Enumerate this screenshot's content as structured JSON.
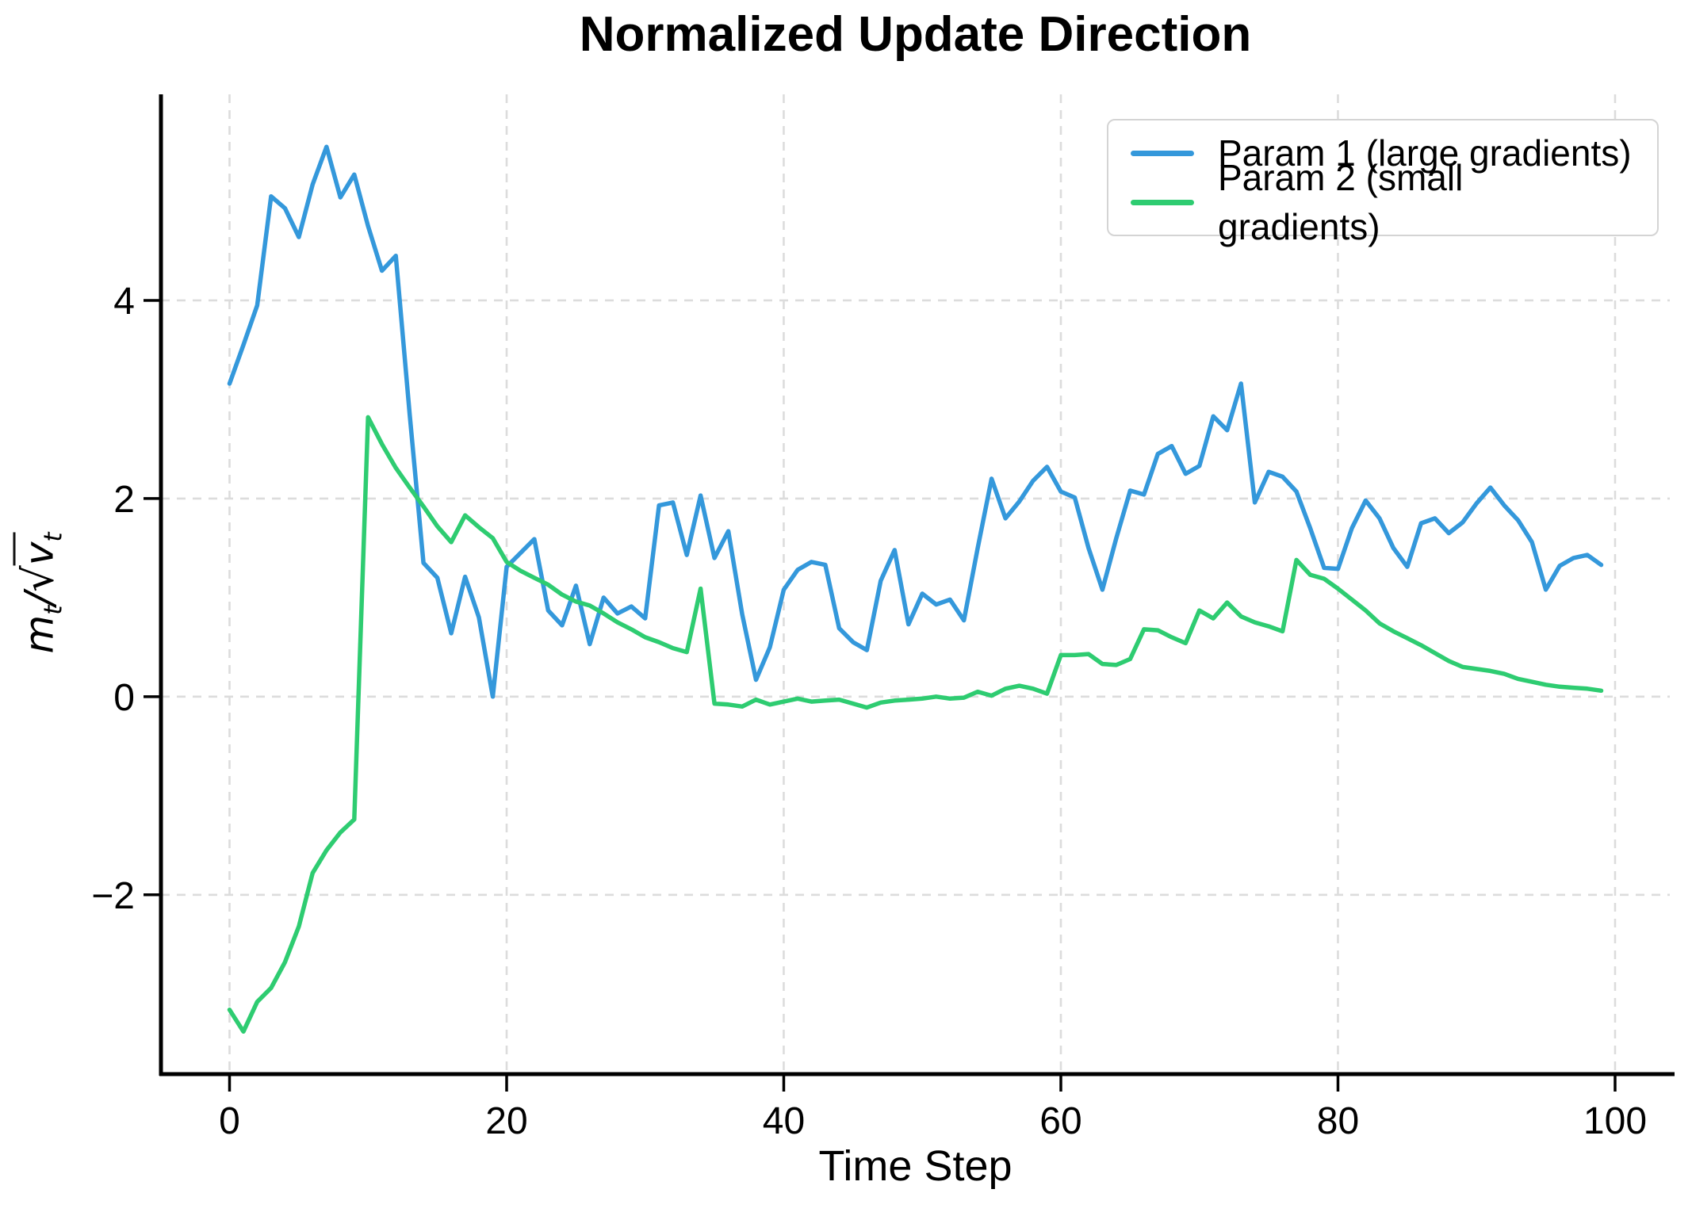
{
  "chart_data": {
    "type": "line",
    "title": "Normalized Update Direction",
    "xlabel": "Time Step",
    "ylabel": "m_t/√v_t",
    "x_range": [
      0,
      99
    ],
    "x_step": 1,
    "xlim": [
      -4.95,
      103.95
    ],
    "ylim": [
      -3.81,
      6.08
    ],
    "xticks": [
      {
        "v": 0,
        "label": "0"
      },
      {
        "v": 20,
        "label": "20"
      },
      {
        "v": 40,
        "label": "40"
      },
      {
        "v": 60,
        "label": "60"
      },
      {
        "v": 80,
        "label": "80"
      },
      {
        "v": 100,
        "label": "100"
      }
    ],
    "yticks": [
      {
        "v": -2,
        "label": "−2"
      },
      {
        "v": 0,
        "label": "0"
      },
      {
        "v": 2,
        "label": "2"
      },
      {
        "v": 4,
        "label": "4"
      }
    ],
    "grid": "dashed",
    "legend_position": "upper right",
    "series": [
      {
        "name": "Param 1 (large gradients)",
        "color": "#3498db",
        "values": [
          3.16,
          3.55,
          3.95,
          5.05,
          4.93,
          4.64,
          5.17,
          5.55,
          5.04,
          5.27,
          4.75,
          4.3,
          4.45,
          2.85,
          1.35,
          1.2,
          0.64,
          1.21,
          0.8,
          0.0,
          1.31,
          1.45,
          1.59,
          0.87,
          0.72,
          1.12,
          0.53,
          1.0,
          0.84,
          0.91,
          0.79,
          1.93,
          1.96,
          1.43,
          2.03,
          1.4,
          1.67,
          0.83,
          0.17,
          0.5,
          1.08,
          1.28,
          1.36,
          1.33,
          0.69,
          0.55,
          0.47,
          1.17,
          1.48,
          0.73,
          1.04,
          0.93,
          0.98,
          0.77,
          1.5,
          2.2,
          1.8,
          1.97,
          2.18,
          2.32,
          2.07,
          2.01,
          1.5,
          1.08,
          1.6,
          2.08,
          2.04,
          2.45,
          2.53,
          2.25,
          2.33,
          2.83,
          2.69,
          3.16,
          1.96,
          2.27,
          2.22,
          2.07,
          1.7,
          1.3,
          1.29,
          1.7,
          1.98,
          1.8,
          1.5,
          1.31,
          1.75,
          1.8,
          1.65,
          1.76,
          1.95,
          2.11,
          1.93,
          1.78,
          1.56,
          1.08,
          1.32,
          1.4,
          1.43,
          1.33
        ]
      },
      {
        "name": "Param 2 (small gradients)",
        "color": "#2ecc71",
        "values": [
          -3.16,
          -3.38,
          -3.08,
          -2.94,
          -2.68,
          -2.32,
          -1.78,
          -1.55,
          -1.37,
          -1.24,
          2.82,
          2.55,
          2.31,
          2.11,
          1.92,
          1.72,
          1.56,
          1.83,
          1.71,
          1.6,
          1.36,
          1.27,
          1.2,
          1.13,
          1.03,
          0.96,
          0.92,
          0.84,
          0.75,
          0.68,
          0.6,
          0.55,
          0.49,
          0.45,
          1.09,
          -0.07,
          -0.08,
          -0.1,
          -0.03,
          -0.08,
          -0.05,
          -0.02,
          -0.05,
          -0.04,
          -0.03,
          -0.07,
          -0.11,
          -0.06,
          -0.04,
          -0.03,
          -0.02,
          0.0,
          -0.02,
          -0.01,
          0.05,
          0.01,
          0.08,
          0.11,
          0.08,
          0.03,
          0.42,
          0.42,
          0.43,
          0.33,
          0.32,
          0.38,
          0.68,
          0.67,
          0.6,
          0.54,
          0.87,
          0.79,
          0.95,
          0.81,
          0.75,
          0.71,
          0.66,
          1.38,
          1.23,
          1.19,
          1.09,
          0.98,
          0.87,
          0.74,
          0.66,
          0.59,
          0.52,
          0.44,
          0.36,
          0.3,
          0.28,
          0.26,
          0.23,
          0.18,
          0.15,
          0.12,
          0.1,
          0.09,
          0.08,
          0.06
        ]
      }
    ]
  },
  "title": "Normalized Update Direction",
  "xlabel": "Time Step",
  "ylabel_parts": {
    "m": "m",
    "sub1": "t",
    "slash": "/",
    "radical": "√",
    "v": "v",
    "sub2": "t"
  },
  "legend": {
    "items": [
      {
        "label": "Param 1 (large gradients)",
        "color": "#3498db"
      },
      {
        "label": "Param 2 (small gradients)",
        "color": "#2ecc71"
      }
    ]
  },
  "style": {
    "grid_color": "#dcdcdc",
    "spine_color": "#000000",
    "tick_label_color": "#000000",
    "background": "#ffffff",
    "line_width": 5.5
  }
}
